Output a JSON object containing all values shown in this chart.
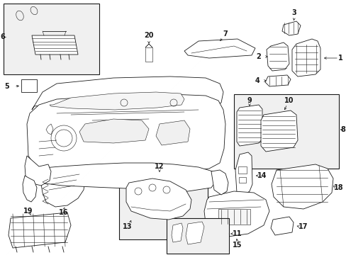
{
  "bg_color": "#ffffff",
  "line_color": "#1a1a1a",
  "fig_width": 4.89,
  "fig_height": 3.6,
  "dpi": 100,
  "gray_box": "#e8e8e8",
  "gray_light": "#f0f0f0"
}
